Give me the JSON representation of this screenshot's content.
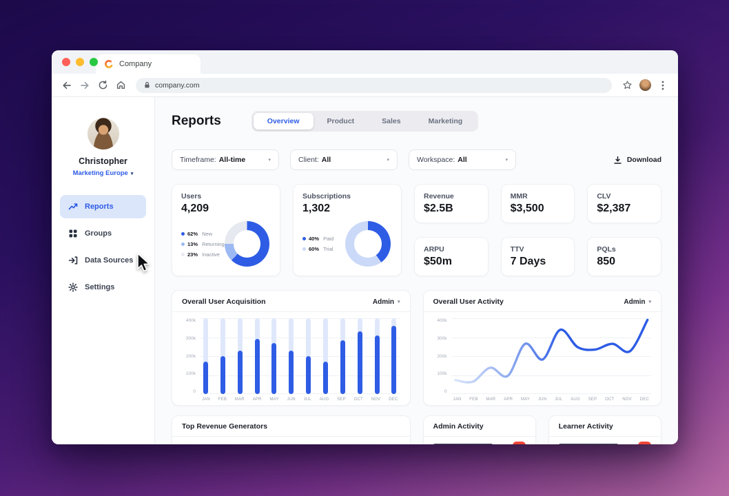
{
  "browser": {
    "tab_title": "Company",
    "url": "company.com"
  },
  "sidebar": {
    "user_name": "Christopher",
    "workspace": "Marketing Europe",
    "items": [
      {
        "label": "Reports",
        "icon": "trending-up",
        "active": true
      },
      {
        "label": "Groups",
        "icon": "grid",
        "active": false
      },
      {
        "label": "Data Sources",
        "icon": "log-in",
        "active": false
      },
      {
        "label": "Settings",
        "icon": "gear",
        "active": false
      }
    ]
  },
  "reports_header": {
    "title": "Reports",
    "tabs": [
      "Overview",
      "Product",
      "Sales",
      "Marketing"
    ]
  },
  "filters": {
    "timeframe": {
      "label": "Timeframe:",
      "value": "All-time"
    },
    "client": {
      "label": "Client:",
      "value": "All"
    },
    "workspace": {
      "label": "Workspace:",
      "value": "All"
    },
    "download_label": "Download"
  },
  "stats": {
    "kpis": [
      {
        "label": "Revenue",
        "value": "$2.5B"
      },
      {
        "label": "MMR",
        "value": "$3,500"
      },
      {
        "label": "CLV",
        "value": "$2,387"
      },
      {
        "label": "ARPU",
        "value": "$50m"
      },
      {
        "label": "TTV",
        "value": "7 Days"
      },
      {
        "label": "PQLs",
        "value": "850"
      }
    ]
  },
  "bottom": {
    "revenue_title": "Top Revenue Generators",
    "admin_title": "Admin Activity",
    "learner_title": "Learner Activity"
  },
  "colors": {
    "accent": "#2e5ce5",
    "nav_active_bg": "#dce6fb",
    "badge_red": "#f04438",
    "bar_fill": "#2e5ce5",
    "bar_track": "#dfe8fb",
    "page_bg": "#fafbfc"
  },
  "icons": {
    "browser": [
      "back-icon",
      "forward-icon",
      "reload-icon",
      "home-icon",
      "lock-icon",
      "star-icon",
      "profile-icon",
      "menu-icon",
      "company-logo-icon"
    ],
    "sidebar": [
      "trending-up-icon",
      "grid-icon",
      "log-in-icon",
      "gear-icon",
      "chevron-down-icon"
    ],
    "misc": [
      "download-icon",
      "cursor-icon"
    ]
  },
  "chart_data": [
    {
      "type": "pie",
      "variant": "donut",
      "title": "Users",
      "total": "4,209",
      "slices": [
        {
          "label": "New",
          "pct": 62,
          "color": "#2e5ce5"
        },
        {
          "label": "Returning",
          "pct": 13,
          "color": "#9db9f3"
        },
        {
          "label": "Inactive",
          "pct": 23,
          "color": "#e6e9f0"
        }
      ]
    },
    {
      "type": "pie",
      "variant": "donut",
      "title": "Subscriptions",
      "total": "1,302",
      "slices": [
        {
          "label": "Paid",
          "pct": 40,
          "color": "#2e5ce5"
        },
        {
          "label": "Trial",
          "pct": 60,
          "color": "#cbd9f8"
        }
      ]
    },
    {
      "type": "bar",
      "title": "Overall User Acquisition",
      "filter": "Admin",
      "categories": [
        "JAN",
        "FEB",
        "MAR",
        "APR",
        "MAY",
        "JUN",
        "JUL",
        "AUG",
        "SEP",
        "OCT",
        "NOV",
        "DEC"
      ],
      "values": [
        170000,
        200000,
        230000,
        290000,
        270000,
        230000,
        200000,
        170000,
        285000,
        330000,
        310000,
        360000
      ],
      "yticks": [
        "400k",
        "300k",
        "200k",
        "100k",
        "0"
      ],
      "ylim": [
        0,
        400000
      ]
    },
    {
      "type": "line",
      "title": "Overall User Activity",
      "filter": "Admin",
      "categories": [
        "JAN",
        "FEB",
        "MAR",
        "APR",
        "MAY",
        "JUN",
        "JUL",
        "AUG",
        "SEP",
        "OCT",
        "NOV",
        "DEC"
      ],
      "values": [
        65000,
        55000,
        140000,
        90000,
        285000,
        190000,
        370000,
        265000,
        250000,
        285000,
        240000,
        430000
      ],
      "yticks": [
        "400k",
        "300k",
        "200k",
        "100k",
        "0"
      ],
      "ylim": [
        0,
        400000
      ]
    }
  ]
}
